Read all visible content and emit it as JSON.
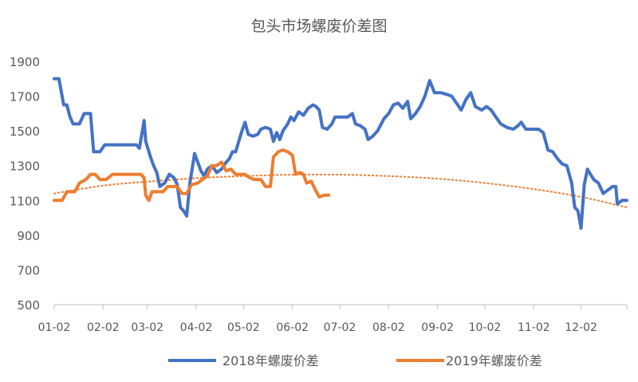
{
  "chart_data": {
    "type": "line",
    "title": "包头市场螺废价差图",
    "xlabel": "",
    "ylabel": "",
    "x_domain": [
      "01-02",
      "12-31"
    ],
    "ylim": [
      500,
      1900
    ],
    "y_ticks": [
      500,
      700,
      900,
      1100,
      1300,
      1500,
      1700,
      1900
    ],
    "x_ticks": [
      "01-02",
      "02-02",
      "03-02",
      "04-02",
      "05-02",
      "06-02",
      "07-02",
      "08-02",
      "09-02",
      "10-02",
      "11-02",
      "12-02"
    ],
    "grid": false,
    "legend_position": "bottom",
    "series": [
      {
        "name": "2018年螺废价差",
        "color": "#4472C4",
        "points": [
          [
            "01-02",
            1800
          ],
          [
            "01-05",
            1800
          ],
          [
            "01-07",
            1700
          ],
          [
            "01-08",
            1650
          ],
          [
            "01-10",
            1650
          ],
          [
            "01-12",
            1580
          ],
          [
            "01-14",
            1540
          ],
          [
            "01-18",
            1540
          ],
          [
            "01-21",
            1600
          ],
          [
            "01-25",
            1600
          ],
          [
            "01-27",
            1380
          ],
          [
            "01-31",
            1380
          ],
          [
            "02-03",
            1420
          ],
          [
            "02-08",
            1420
          ],
          [
            "02-13",
            1420
          ],
          [
            "02-18",
            1420
          ],
          [
            "02-23",
            1420
          ],
          [
            "02-25",
            1400
          ],
          [
            "02-28",
            1560
          ],
          [
            "03-01",
            1440
          ],
          [
            "03-04",
            1350
          ],
          [
            "03-06",
            1300
          ],
          [
            "03-08",
            1260
          ],
          [
            "03-10",
            1180
          ],
          [
            "03-13",
            1200
          ],
          [
            "03-16",
            1250
          ],
          [
            "03-19",
            1230
          ],
          [
            "03-21",
            1190
          ],
          [
            "03-23",
            1060
          ],
          [
            "03-25",
            1040
          ],
          [
            "03-27",
            1010
          ],
          [
            "03-29",
            1200
          ],
          [
            "04-01",
            1370
          ],
          [
            "04-03",
            1320
          ],
          [
            "04-05",
            1270
          ],
          [
            "04-07",
            1240
          ],
          [
            "04-09",
            1280
          ],
          [
            "04-12",
            1300
          ],
          [
            "04-15",
            1260
          ],
          [
            "04-18",
            1280
          ],
          [
            "04-21",
            1320
          ],
          [
            "04-23",
            1340
          ],
          [
            "04-25",
            1380
          ],
          [
            "04-27",
            1380
          ],
          [
            "04-29",
            1440
          ],
          [
            "05-01",
            1500
          ],
          [
            "05-03",
            1550
          ],
          [
            "05-05",
            1480
          ],
          [
            "05-08",
            1470
          ],
          [
            "05-11",
            1480
          ],
          [
            "05-13",
            1510
          ],
          [
            "05-16",
            1520
          ],
          [
            "05-19",
            1510
          ],
          [
            "05-21",
            1440
          ],
          [
            "05-23",
            1490
          ],
          [
            "05-25",
            1450
          ],
          [
            "05-27",
            1500
          ],
          [
            "05-30",
            1540
          ],
          [
            "06-01",
            1580
          ],
          [
            "06-03",
            1560
          ],
          [
            "06-06",
            1610
          ],
          [
            "06-09",
            1590
          ],
          [
            "06-12",
            1630
          ],
          [
            "06-15",
            1650
          ],
          [
            "06-17",
            1640
          ],
          [
            "06-19",
            1620
          ],
          [
            "06-21",
            1520
          ],
          [
            "06-24",
            1510
          ],
          [
            "06-27",
            1540
          ],
          [
            "06-29",
            1580
          ],
          [
            "07-03",
            1580
          ],
          [
            "07-07",
            1580
          ],
          [
            "07-10",
            1600
          ],
          [
            "07-12",
            1540
          ],
          [
            "07-15",
            1530
          ],
          [
            "07-18",
            1510
          ],
          [
            "07-20",
            1450
          ],
          [
            "07-23",
            1470
          ],
          [
            "07-26",
            1500
          ],
          [
            "07-30",
            1570
          ],
          [
            "08-02",
            1600
          ],
          [
            "08-05",
            1650
          ],
          [
            "08-08",
            1660
          ],
          [
            "08-11",
            1630
          ],
          [
            "08-14",
            1670
          ],
          [
            "08-16",
            1570
          ],
          [
            "08-19",
            1600
          ],
          [
            "08-22",
            1640
          ],
          [
            "08-25",
            1700
          ],
          [
            "08-28",
            1790
          ],
          [
            "08-31",
            1720
          ],
          [
            "09-04",
            1720
          ],
          [
            "09-08",
            1710
          ],
          [
            "09-11",
            1700
          ],
          [
            "09-14",
            1660
          ],
          [
            "09-17",
            1620
          ],
          [
            "09-20",
            1680
          ],
          [
            "09-23",
            1720
          ],
          [
            "09-26",
            1640
          ],
          [
            "09-30",
            1620
          ],
          [
            "10-03",
            1640
          ],
          [
            "10-06",
            1620
          ],
          [
            "10-09",
            1580
          ],
          [
            "10-12",
            1540
          ],
          [
            "10-16",
            1520
          ],
          [
            "10-20",
            1510
          ],
          [
            "10-23",
            1530
          ],
          [
            "10-25",
            1550
          ],
          [
            "10-28",
            1510
          ],
          [
            "11-02",
            1510
          ],
          [
            "11-05",
            1510
          ],
          [
            "11-08",
            1490
          ],
          [
            "11-11",
            1390
          ],
          [
            "11-14",
            1380
          ],
          [
            "11-17",
            1340
          ],
          [
            "11-20",
            1310
          ],
          [
            "11-23",
            1300
          ],
          [
            "11-26",
            1200
          ],
          [
            "11-28",
            1060
          ],
          [
            "11-30",
            1040
          ],
          [
            "12-02",
            940
          ],
          [
            "12-04",
            1190
          ],
          [
            "12-06",
            1280
          ],
          [
            "12-08",
            1250
          ],
          [
            "12-10",
            1220
          ],
          [
            "12-13",
            1200
          ],
          [
            "12-16",
            1140
          ],
          [
            "12-19",
            1160
          ],
          [
            "12-22",
            1180
          ],
          [
            "12-24",
            1180
          ],
          [
            "12-25",
            1080
          ],
          [
            "12-28",
            1100
          ],
          [
            "12-31",
            1100
          ]
        ]
      },
      {
        "name": "2019年螺废价差",
        "color": "#ED7D31",
        "points": [
          [
            "01-02",
            1100
          ],
          [
            "01-07",
            1100
          ],
          [
            "01-10",
            1150
          ],
          [
            "01-15",
            1150
          ],
          [
            "01-18",
            1200
          ],
          [
            "01-22",
            1220
          ],
          [
            "01-25",
            1250
          ],
          [
            "01-28",
            1250
          ],
          [
            "01-31",
            1220
          ],
          [
            "02-04",
            1220
          ],
          [
            "02-08",
            1250
          ],
          [
            "02-13",
            1250
          ],
          [
            "02-18",
            1250
          ],
          [
            "02-23",
            1250
          ],
          [
            "02-26",
            1250
          ],
          [
            "02-28",
            1230
          ],
          [
            "03-01",
            1130
          ],
          [
            "03-03",
            1100
          ],
          [
            "03-05",
            1150
          ],
          [
            "03-08",
            1150
          ],
          [
            "03-12",
            1150
          ],
          [
            "03-15",
            1180
          ],
          [
            "03-18",
            1180
          ],
          [
            "03-21",
            1180
          ],
          [
            "03-24",
            1140
          ],
          [
            "03-27",
            1140
          ],
          [
            "03-30",
            1190
          ],
          [
            "04-03",
            1200
          ],
          [
            "04-06",
            1220
          ],
          [
            "04-09",
            1240
          ],
          [
            "04-12",
            1300
          ],
          [
            "04-15",
            1300
          ],
          [
            "04-18",
            1320
          ],
          [
            "04-21",
            1270
          ],
          [
            "04-24",
            1280
          ],
          [
            "04-27",
            1250
          ],
          [
            "04-30",
            1250
          ],
          [
            "05-03",
            1250
          ],
          [
            "05-06",
            1230
          ],
          [
            "05-09",
            1220
          ],
          [
            "05-13",
            1220
          ],
          [
            "05-16",
            1180
          ],
          [
            "05-19",
            1180
          ],
          [
            "05-21",
            1350
          ],
          [
            "05-24",
            1380
          ],
          [
            "05-27",
            1390
          ],
          [
            "05-30",
            1380
          ],
          [
            "06-02",
            1360
          ],
          [
            "06-04",
            1250
          ],
          [
            "06-07",
            1260
          ],
          [
            "06-09",
            1250
          ],
          [
            "06-11",
            1200
          ],
          [
            "06-14",
            1210
          ],
          [
            "06-16",
            1170
          ],
          [
            "06-19",
            1120
          ],
          [
            "06-22",
            1130
          ],
          [
            "06-25",
            1130
          ]
        ]
      }
    ],
    "trendline": {
      "kind": "polynomial",
      "color": "#ED7D31",
      "style": "dotted",
      "points": [
        [
          "01-02",
          1140
        ],
        [
          "02-02",
          1185
        ],
        [
          "03-02",
          1208
        ],
        [
          "04-02",
          1228
        ],
        [
          "05-02",
          1240
        ],
        [
          "06-02",
          1248
        ],
        [
          "07-02",
          1248
        ],
        [
          "08-02",
          1240
        ],
        [
          "09-02",
          1225
        ],
        [
          "10-02",
          1200
        ],
        [
          "11-02",
          1165
        ],
        [
          "12-02",
          1120
        ],
        [
          "12-31",
          1060
        ]
      ]
    }
  }
}
